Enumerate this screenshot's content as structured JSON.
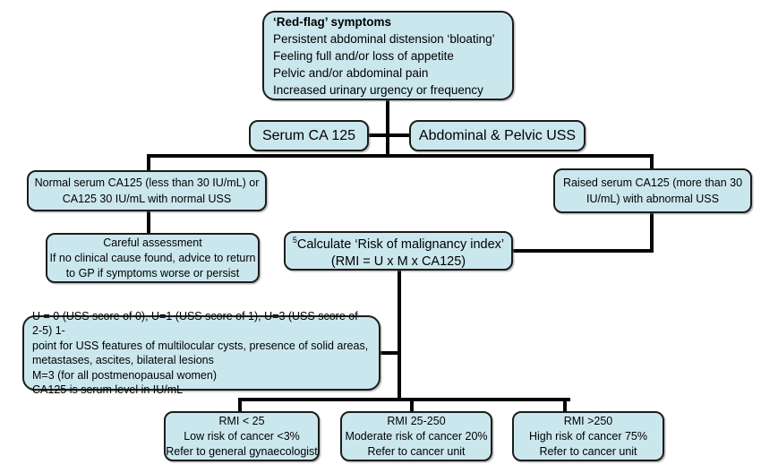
{
  "colors": {
    "background": "#ffffff",
    "box_fill": "#cbe7ee",
    "box_border": "#1c1c1c",
    "connector": "#050505",
    "text": "#000000"
  },
  "flowchart": {
    "red_flag": {
      "title": "‘Red-flag’ symptoms",
      "symptoms": [
        "Persistent abdominal distension ‘bloating’",
        "Feeling full and/or loss of appetite",
        "Pelvic and/or abdominal pain",
        "Increased urinary urgency or frequency"
      ]
    },
    "serum_ca125": {
      "label": "Serum CA 125"
    },
    "abdominal_uss": {
      "label": "Abdominal & Pelvic USS"
    },
    "normal_ca125": {
      "lines": [
        "Normal serum CA125 (less than 30 IU/mL) or",
        "CA125 30 IU/mL with normal USS"
      ]
    },
    "raised_ca125": {
      "lines": [
        "Raised serum CA125 (more than 30",
        "IU/mL) with abnormal USS"
      ]
    },
    "careful_assessment": {
      "lines": [
        "Careful assessment",
        "If no clinical cause found, advice to return",
        "to GP if symptoms worse or persist"
      ]
    },
    "rmi_calc": {
      "superscript": "5",
      "title": "Calculate ‘Risk of malignancy index’",
      "formula": "(RMI = U x M x CA125)"
    },
    "rmi_key": {
      "lines": [
        "U = 0 (USS score of 0), U=1 (USS score of 1), U=3 (USS score of 2-5) 1-",
        "point for USS features of multilocular cysts, presence of solid areas,",
        "metastases, ascites, bilateral lesions",
        "M=3 (for all postmenopausal women)",
        "CA125 is serum level in IU/mL"
      ]
    },
    "rmi_low": {
      "lines": [
        "RMI < 25",
        "Low risk of cancer <3%",
        "Refer to general gynaecologist"
      ]
    },
    "rmi_moderate": {
      "lines": [
        "RMI 25-250",
        "Moderate risk of cancer 20%",
        "Refer to cancer unit"
      ]
    },
    "rmi_high": {
      "lines": [
        "RMI >250",
        "High risk of cancer 75%",
        "Refer to cancer unit"
      ]
    }
  }
}
